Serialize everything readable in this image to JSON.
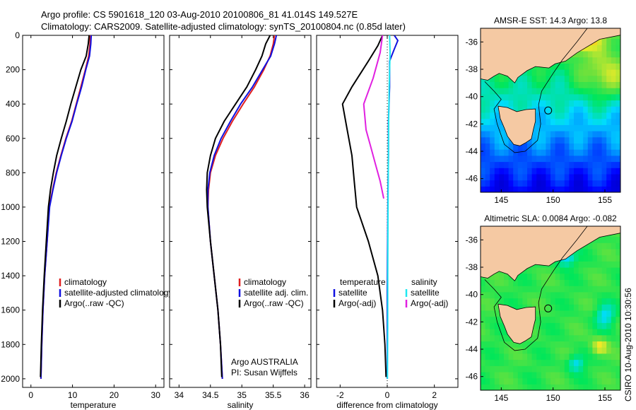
{
  "header": {
    "line1": "Argo profile: CS 5901618_120 03-Aug-2010 20100806_81 41.014S 149.527E",
    "line2": "Climatology: CARS2009. Satellite-adjusted climatology: synTS_20100804.nc (0.85d later)"
  },
  "credit": "CSIRO 10-Aug-2010 10:30:56",
  "colors": {
    "climatology": "#e02020",
    "satellite": "#1010e0",
    "argo": "#000000",
    "sal_satellite": "#20e8f0",
    "sal_argo": "#e020e0",
    "land": "#f5c9a3"
  },
  "chart_data": [
    {
      "type": "line",
      "id": "temperature",
      "xlabel": "temperature",
      "ylabel": "",
      "xlim": [
        -2,
        32
      ],
      "ylim": [
        2050,
        0
      ],
      "xticks": [
        0,
        10,
        20,
        30
      ],
      "yticks": [
        0,
        200,
        400,
        600,
        800,
        1000,
        1200,
        1400,
        1600,
        1800,
        2000
      ],
      "legend": [
        "climatology",
        "satellite-adjusted climatology",
        "Argo(..raw -QC)"
      ],
      "series": [
        {
          "name": "climatology",
          "color": "climatology",
          "x": [
            14.2,
            14.2,
            13.9,
            13.1,
            12.0,
            10.9,
            9.8,
            8.4,
            7.2,
            6.1,
            5.2,
            4.4,
            3.9,
            3.3,
            2.9,
            2.6,
            2.4
          ],
          "y": [
            0,
            50,
            120,
            200,
            300,
            400,
            500,
            600,
            700,
            800,
            900,
            1000,
            1200,
            1400,
            1600,
            1800,
            2000
          ]
        },
        {
          "name": "satellite-adjusted climatology",
          "color": "satellite",
          "x": [
            14.5,
            14.4,
            14.1,
            13.2,
            12.2,
            11.0,
            9.9,
            8.5,
            7.3,
            6.2,
            5.3,
            4.5,
            3.9,
            3.3,
            2.9,
            2.6,
            2.4
          ],
          "y": [
            0,
            50,
            120,
            200,
            300,
            400,
            500,
            600,
            700,
            800,
            900,
            1000,
            1200,
            1400,
            1600,
            1800,
            2000
          ]
        },
        {
          "name": "Argo(..raw -QC)",
          "color": "argo",
          "x": [
            14.0,
            13.8,
            13.3,
            12.0,
            10.8,
            9.6,
            8.5,
            7.3,
            6.2,
            5.4,
            4.7,
            4.2,
            3.7,
            3.2,
            2.8,
            2.5,
            2.3
          ],
          "y": [
            0,
            50,
            120,
            200,
            300,
            400,
            500,
            600,
            700,
            800,
            900,
            1000,
            1200,
            1400,
            1600,
            1800,
            1990
          ]
        }
      ]
    },
    {
      "type": "line",
      "id": "salinity",
      "xlabel": "salinity",
      "ylabel": "",
      "xlim": [
        33.85,
        36.1
      ],
      "ylim": [
        2050,
        0
      ],
      "xticks": [
        34,
        34.5,
        35,
        35.5,
        36
      ],
      "legend": [
        "climatology",
        "satellite adj. clim.",
        "Argo(..raw -QC)"
      ],
      "annotation": [
        "Argo AUSTRALIA",
        "PI: Susan Wijffels"
      ],
      "series": [
        {
          "name": "climatology",
          "color": "climatology",
          "x": [
            35.52,
            35.5,
            35.45,
            35.35,
            35.2,
            35.02,
            34.85,
            34.7,
            34.58,
            34.5,
            34.47,
            34.46,
            34.5,
            34.56,
            34.62,
            34.66,
            34.69
          ],
          "y": [
            0,
            50,
            120,
            200,
            300,
            400,
            500,
            600,
            700,
            800,
            900,
            1000,
            1200,
            1400,
            1600,
            1800,
            2000
          ]
        },
        {
          "name": "satellite adj. clim.",
          "color": "satellite",
          "x": [
            35.55,
            35.52,
            35.46,
            35.33,
            35.17,
            34.98,
            34.82,
            34.67,
            34.56,
            34.49,
            34.46,
            34.46,
            34.5,
            34.56,
            34.62,
            34.66,
            34.69
          ],
          "y": [
            0,
            50,
            120,
            200,
            300,
            400,
            500,
            600,
            700,
            800,
            900,
            1000,
            1200,
            1400,
            1600,
            1800,
            2000
          ]
        },
        {
          "name": "Argo(..raw -QC)",
          "color": "argo",
          "x": [
            35.45,
            35.38,
            35.32,
            35.22,
            35.08,
            34.9,
            34.72,
            34.58,
            34.5,
            34.45,
            34.44,
            34.45,
            34.5,
            34.56,
            34.62,
            34.66,
            34.68
          ],
          "y": [
            0,
            50,
            120,
            200,
            300,
            400,
            500,
            600,
            700,
            800,
            900,
            1000,
            1200,
            1400,
            1600,
            1800,
            1990
          ]
        }
      ]
    },
    {
      "type": "line",
      "id": "difference",
      "xlabel": "difference from climatology",
      "ylabel": "",
      "xlim": [
        -3,
        3
      ],
      "ylim": [
        2050,
        0
      ],
      "xticks": [
        -2,
        0,
        2
      ],
      "legend_temperature_title": "temperature",
      "legend_salinity_title": "salinity",
      "legend": [
        "satellite",
        "Argo(-adj)",
        "satellite",
        "Argo(-adj)"
      ],
      "series": [
        {
          "name": "satellite",
          "group": "temperature",
          "color": "satellite",
          "x": [
            0.3,
            0.45,
            0.3,
            0.1,
            0.1,
            0.05,
            0.05,
            0.03,
            0.02,
            0.01,
            0.0,
            0.0,
            0.0
          ],
          "y": [
            0,
            30,
            80,
            150,
            300,
            500,
            700,
            900,
            1100,
            1300,
            1500,
            1700,
            2000
          ]
        },
        {
          "name": "Argo(-adj)",
          "group": "temperature",
          "color": "argo",
          "x": [
            -0.2,
            -0.4,
            -0.8,
            -1.5,
            -1.9,
            -1.7,
            -1.5,
            -1.4,
            -1.3,
            -0.8,
            -0.4,
            -0.2,
            -0.1,
            -0.05
          ],
          "y": [
            0,
            60,
            150,
            300,
            400,
            550,
            700,
            850,
            1000,
            1200,
            1400,
            1600,
            1800,
            1990
          ]
        },
        {
          "name": "satellite",
          "group": "salinity",
          "color": "sal_satellite",
          "x": [
            0.1,
            0.12,
            0.08,
            0.06,
            0.05,
            0.04,
            0.03,
            0.02,
            0.02,
            0.01
          ],
          "y": [
            0,
            100,
            300,
            500,
            700,
            900,
            1100,
            1400,
            1700,
            2000
          ]
        },
        {
          "name": "Argo(-adj)",
          "group": "salinity",
          "color": "sal_argo",
          "x": [
            -0.2,
            -0.3,
            -0.6,
            -1.0,
            -0.9,
            -0.7,
            -0.5,
            -0.3,
            -0.15
          ],
          "y": [
            0,
            100,
            250,
            400,
            550,
            650,
            750,
            850,
            950
          ]
        }
      ]
    },
    {
      "type": "heatmap",
      "id": "amsre-sst-map",
      "title": "AMSR-E SST: 14.3 Argo: 13.8",
      "xlim": [
        143,
        156.5
      ],
      "ylim": [
        -47,
        -35
      ],
      "xticks": [
        145,
        150,
        155
      ],
      "yticks": [
        -36,
        -38,
        -40,
        -42,
        -44,
        -46
      ],
      "float_position": {
        "lon": 149.527,
        "lat": -41.014
      }
    },
    {
      "type": "heatmap",
      "id": "altimetric-sla-map",
      "title": "Altimetric SLA: 0.0084 Argo: -0.082",
      "xlim": [
        143,
        156.5
      ],
      "ylim": [
        -47,
        -35
      ],
      "xticks": [
        145,
        150,
        155
      ],
      "yticks": [
        -36,
        -38,
        -40,
        -42,
        -44,
        -46
      ],
      "float_position": {
        "lon": 149.527,
        "lat": -41.014
      }
    }
  ]
}
